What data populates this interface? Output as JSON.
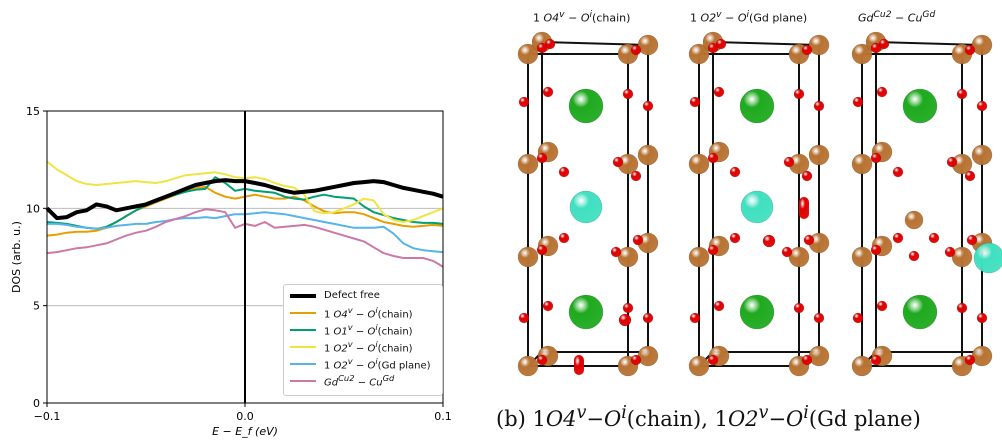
{
  "chart_data": {
    "type": "line",
    "xlabel": "E − E_f (eV)",
    "ylabel": "DOS (arb. u.)",
    "xlim": [
      -0.1,
      0.1
    ],
    "ylim": [
      0,
      15
    ],
    "xticks": [
      "−0.1",
      "0.0",
      "0.1"
    ],
    "yticks": [
      "0",
      "5",
      "10",
      "15"
    ],
    "grid": "horizontal",
    "vline_at": 0.0,
    "legend_position": "bottom-right",
    "x": [
      -0.1,
      -0.095,
      -0.09,
      -0.085,
      -0.08,
      -0.075,
      -0.07,
      -0.065,
      -0.06,
      -0.055,
      -0.05,
      -0.045,
      -0.04,
      -0.035,
      -0.03,
      -0.025,
      -0.02,
      -0.015,
      -0.01,
      -0.005,
      0.0,
      0.005,
      0.01,
      0.015,
      0.02,
      0.025,
      0.03,
      0.035,
      0.04,
      0.045,
      0.05,
      0.055,
      0.06,
      0.065,
      0.07,
      0.075,
      0.08,
      0.085,
      0.09,
      0.095,
      0.1
    ],
    "series": [
      {
        "name": "Defect free",
        "color": "#000000",
        "width": 4,
        "values": [
          10.0,
          9.5,
          9.55,
          9.8,
          9.9,
          10.2,
          10.1,
          9.9,
          10.0,
          10.1,
          10.2,
          10.4,
          10.6,
          10.8,
          11.0,
          11.2,
          11.3,
          11.4,
          11.45,
          11.4,
          11.4,
          11.3,
          11.2,
          11.05,
          10.9,
          10.8,
          10.85,
          10.9,
          11.0,
          11.1,
          11.2,
          11.3,
          11.35,
          11.4,
          11.35,
          11.2,
          11.05,
          10.95,
          10.85,
          10.75,
          10.6
        ]
      },
      {
        "name": "1 O4^v − O^i(chain)",
        "color": "#e69f00",
        "width": 2,
        "values": [
          8.6,
          8.65,
          8.75,
          8.8,
          8.8,
          8.85,
          9.0,
          9.3,
          9.6,
          9.9,
          10.1,
          10.3,
          10.5,
          10.7,
          10.9,
          11.05,
          11.1,
          10.8,
          10.6,
          10.5,
          10.6,
          10.7,
          10.6,
          10.5,
          10.5,
          10.6,
          10.4,
          10.1,
          9.85,
          9.75,
          9.8,
          9.8,
          9.7,
          9.5,
          9.3,
          9.2,
          9.1,
          9.05,
          9.1,
          9.15,
          9.1
        ]
      },
      {
        "name": "1 O1^v − O^i(chain)",
        "color": "#009e73",
        "width": 2,
        "values": [
          9.3,
          9.25,
          9.2,
          9.1,
          9.0,
          8.95,
          9.05,
          9.3,
          9.6,
          9.9,
          10.15,
          10.4,
          10.55,
          10.7,
          10.85,
          10.95,
          11.0,
          11.6,
          11.3,
          10.9,
          11.0,
          10.9,
          10.85,
          10.8,
          10.6,
          10.5,
          10.45,
          10.6,
          10.7,
          10.6,
          10.55,
          10.5,
          10.1,
          9.8,
          9.65,
          9.5,
          9.4,
          9.3,
          9.25,
          9.25,
          9.2
        ]
      },
      {
        "name": "1 O2^v − O^i(chain)",
        "color": "#f0e442",
        "width": 2,
        "values": [
          12.4,
          12.0,
          11.7,
          11.4,
          11.25,
          11.2,
          11.25,
          11.3,
          11.35,
          11.4,
          11.35,
          11.3,
          11.4,
          11.55,
          11.7,
          11.75,
          11.8,
          11.85,
          11.75,
          11.6,
          11.55,
          11.6,
          11.5,
          11.3,
          11.15,
          11.05,
          10.7,
          9.85,
          9.75,
          9.8,
          10.0,
          10.2,
          10.5,
          10.4,
          9.7,
          9.4,
          9.3,
          9.4,
          9.6,
          9.8,
          10.0
        ]
      },
      {
        "name": "1 O2^v − O^i(Gd plane)",
        "color": "#56b4e9",
        "width": 2,
        "values": [
          9.2,
          9.2,
          9.15,
          9.05,
          9.0,
          8.95,
          9.0,
          9.1,
          9.15,
          9.2,
          9.2,
          9.3,
          9.35,
          9.45,
          9.5,
          9.5,
          9.55,
          9.5,
          9.6,
          9.7,
          9.7,
          9.75,
          9.8,
          9.75,
          9.7,
          9.6,
          9.5,
          9.4,
          9.3,
          9.2,
          9.1,
          9.0,
          9.0,
          9.0,
          9.05,
          8.7,
          8.2,
          7.95,
          7.85,
          7.8,
          7.75
        ]
      },
      {
        "name": "Gd^Cu2 − Cu^Gd",
        "color": "#cc79a7",
        "width": 2,
        "values": [
          7.7,
          7.75,
          7.85,
          7.95,
          8.0,
          8.1,
          8.2,
          8.4,
          8.6,
          8.75,
          8.85,
          9.05,
          9.3,
          9.45,
          9.6,
          9.8,
          9.95,
          9.9,
          9.8,
          9.0,
          9.2,
          9.1,
          9.3,
          9.0,
          9.05,
          9.1,
          9.15,
          9.05,
          8.9,
          8.75,
          8.6,
          8.45,
          8.3,
          8.0,
          7.7,
          7.55,
          7.45,
          7.45,
          7.45,
          7.3,
          7.0
        ]
      }
    ]
  },
  "legend": {
    "defect_free": "Defect free",
    "o4_prefix": "1 ",
    "o4_main": "O4",
    "o4_sup": "v",
    "o4_dash": " − ",
    "o4_oi": "O",
    "o4_oi_sup": "i",
    "o4_tail": "(chain)",
    "o1_prefix": "1 ",
    "o1_main": "O1",
    "o1_sup": "v",
    "o1_dash": " − ",
    "o1_oi": "O",
    "o1_oi_sup": "i",
    "o1_tail": "(chain)",
    "o2c_prefix": "1 ",
    "o2c_main": "O2",
    "o2c_sup": "v",
    "o2c_dash": " − ",
    "o2c_oi": "O",
    "o2c_oi_sup": "i",
    "o2c_tail": "(chain)",
    "o2g_prefix": "1 ",
    "o2g_main": "O2",
    "o2g_sup": "v",
    "o2g_dash": " − ",
    "o2g_oi": "O",
    "o2g_oi_sup": "i",
    "o2g_tail": "(Gd plane)",
    "gd_main": "Gd",
    "gd_sup": "Cu2",
    "gd_dash": " − ",
    "gd_cu": "Cu",
    "gd_cu_sup": "Gd"
  },
  "structures": {
    "panel1_title_prefix": "1 ",
    "panel1_title_main": "O4",
    "panel1_title_sup": "v",
    "panel1_title_dash": " − ",
    "panel1_title_oi": "O",
    "panel1_title_oi_sup": "i",
    "panel1_title_tail": "(chain)",
    "panel2_title_prefix": "1 ",
    "panel2_title_main": "O2",
    "panel2_title_sup": "v",
    "panel2_title_dash": " − ",
    "panel2_title_oi": "O",
    "panel2_title_oi_sup": "i",
    "panel2_title_tail": "(Gd plane)",
    "panel3_title_main": "Gd",
    "panel3_title_sup": "Cu2",
    "panel3_title_dash": " − ",
    "panel3_title_cu": "Cu",
    "panel3_title_cu_sup": "Gd",
    "caption_label": "(b) ",
    "caption_a_num": "1",
    "caption_a_main": "O4",
    "caption_a_sup": "v",
    "caption_a_dash": "−",
    "caption_a_oi": "O",
    "caption_a_oi_sup": "i",
    "caption_a_tail": "(chain), ",
    "caption_b_num": "1",
    "caption_b_main": "O2",
    "caption_b_sup": "v",
    "caption_b_dash": "−",
    "caption_b_oi": "O",
    "caption_b_oi_sup": "i",
    "caption_b_tail": "(Gd plane)",
    "colors": {
      "cu": "#b87333",
      "o": "#e00000",
      "gd": "#1faa1f",
      "ba": "#40e0c0",
      "frame": "#111111"
    }
  }
}
